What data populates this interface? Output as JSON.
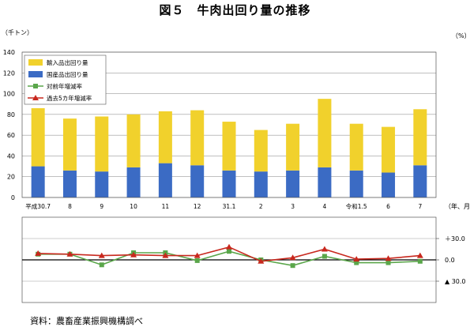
{
  "title": "図５　牛肉出回り量の推移",
  "source": "資料：農畜産業振興機構調べ",
  "chart_data": [
    {
      "type": "bar",
      "stacked": true,
      "ylabel": "（千トン）",
      "ylim": [
        0,
        140
      ],
      "yticks": [
        "0",
        "20",
        "40",
        "60",
        "80",
        "100",
        "120",
        "140"
      ],
      "ytick_values": [
        0,
        20,
        40,
        60,
        80,
        100,
        120,
        140
      ],
      "grid": true,
      "legend_position": "top-left",
      "categories": [
        "平成30.7",
        "8",
        "9",
        "10",
        "11",
        "12",
        "31.1",
        "2",
        "3",
        "4",
        "令和1.5",
        "6",
        "7"
      ],
      "xlabel": "（年、月）",
      "series": [
        {
          "name": "国産品出回り量",
          "color": "#3b6bc4",
          "values": [
            30,
            26,
            25,
            29,
            33,
            31,
            26,
            25,
            26,
            29,
            26,
            24,
            31
          ]
        },
        {
          "name": "輸入品出回り量",
          "color": "#f1d12c",
          "values": [
            56,
            50,
            53,
            51,
            50,
            53,
            47,
            40,
            45,
            66,
            45,
            44,
            54
          ]
        }
      ]
    },
    {
      "type": "line",
      "ylabel": "（%）",
      "ylim": [
        -60,
        60
      ],
      "yticks": [
        "＋30.0",
        "0.0",
        "▲ 30.0"
      ],
      "ytick_values": [
        30,
        0,
        -30
      ],
      "categories": [
        "平成30.7",
        "8",
        "9",
        "10",
        "11",
        "12",
        "31.1",
        "2",
        "3",
        "4",
        "令和1.5",
        "6",
        "7"
      ],
      "series": [
        {
          "name": "対前年増減率",
          "color": "#5aa64a",
          "marker": "square",
          "values": [
            8,
            8,
            -7,
            10,
            10,
            -1,
            12,
            0,
            -8,
            5,
            -4,
            -4,
            -2
          ]
        },
        {
          "name": "過去5カ年増減率",
          "color": "#c8281e",
          "marker": "triangle",
          "values": [
            9,
            8,
            6,
            7,
            6,
            6,
            18,
            -2,
            3,
            15,
            1,
            2,
            6
          ]
        }
      ]
    }
  ]
}
